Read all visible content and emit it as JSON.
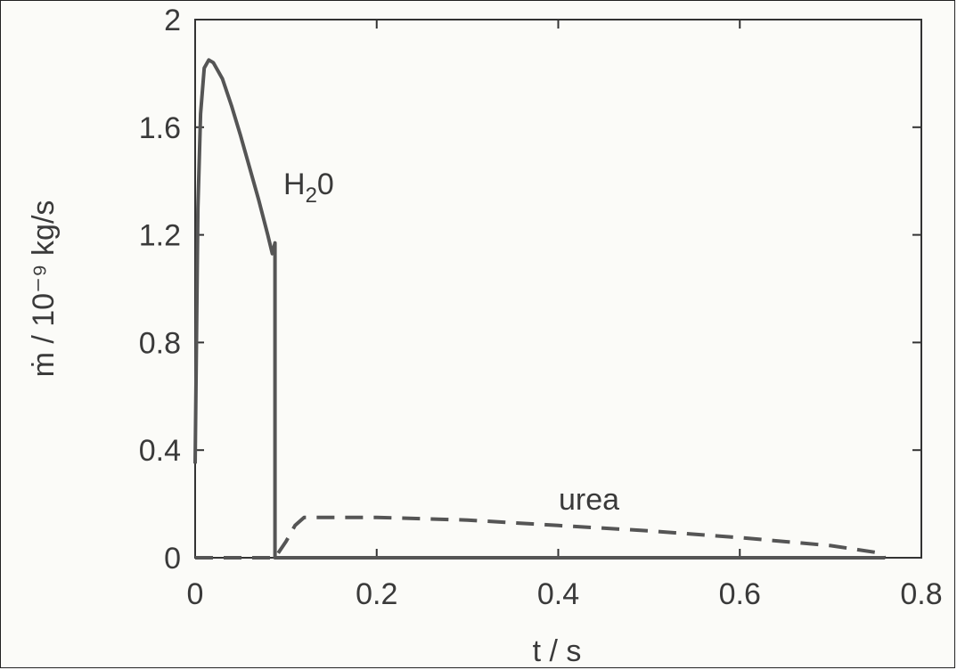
{
  "chart_data": {
    "type": "line",
    "xlabel": "t / s",
    "ylabel": "ṁ / 10⁻⁹ kg/s",
    "xlim": [
      0,
      0.8
    ],
    "ylim": [
      0,
      2
    ],
    "xticks": [
      "0",
      "0.2",
      "0.4",
      "0.6",
      "0.8"
    ],
    "yticks": [
      "0",
      "0.4",
      "0.8",
      "1.2",
      "1.6",
      "2"
    ],
    "grid": false,
    "series": [
      {
        "name": "H₂0",
        "style": "solid",
        "x": [
          0.0,
          0.003,
          0.006,
          0.01,
          0.015,
          0.02,
          0.03,
          0.04,
          0.05,
          0.06,
          0.07,
          0.08,
          0.085,
          0.088,
          0.088,
          0.09,
          0.2,
          0.4,
          0.6,
          0.76
        ],
        "y": [
          0.35,
          1.3,
          1.65,
          1.82,
          1.85,
          1.84,
          1.78,
          1.68,
          1.57,
          1.45,
          1.33,
          1.2,
          1.13,
          1.17,
          0.0,
          0.0,
          0.0,
          0.0,
          0.0,
          0.0
        ]
      },
      {
        "name": "urea",
        "style": "dashed",
        "x": [
          0.0,
          0.088,
          0.1,
          0.11,
          0.12,
          0.2,
          0.3,
          0.4,
          0.5,
          0.6,
          0.7,
          0.75,
          0.76
        ],
        "y": [
          0.0,
          0.0,
          0.06,
          0.12,
          0.15,
          0.15,
          0.14,
          0.12,
          0.1,
          0.075,
          0.045,
          0.02,
          0.0
        ]
      }
    ],
    "annotations": {
      "h2o": {
        "text_main": "H",
        "text_sub": "2",
        "text_tail": "0"
      },
      "urea": {
        "text": "urea"
      }
    },
    "colors": {
      "line": "#555555",
      "axis": "#333333",
      "text": "#3a3a3a"
    }
  }
}
